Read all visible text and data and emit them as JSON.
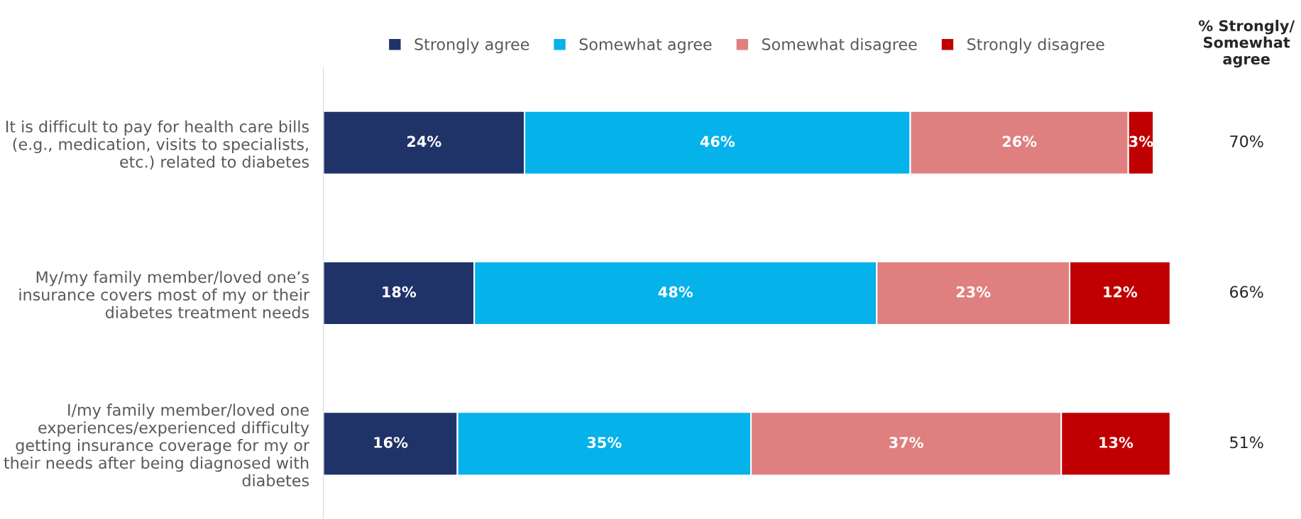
{
  "chart_data": {
    "type": "bar",
    "orientation": "horizontal",
    "stacked": true,
    "legend": "top",
    "categories": [
      "It is difficult to pay for health care bills\n(e.g., medication, visits to specialists,\netc.) related to diabetes",
      "My/my family member/loved one’s\ninsurance covers most of my or their\ndiabetes treatment needs",
      "I/my family member/loved one\nexperiences/experienced difficulty\ngetting insurance coverage for my or\ntheir needs after being diagnosed with\ndiabetes"
    ],
    "series": [
      {
        "name": "Strongly agree",
        "color": "#1f3368",
        "values": [
          24,
          18,
          16
        ],
        "value_labels": [
          "24%",
          "18%",
          "16%"
        ]
      },
      {
        "name": "Somewhat agree",
        "color": "#05b2ea",
        "values": [
          46,
          48,
          35
        ],
        "value_labels": [
          "46%",
          "48%",
          "35%"
        ]
      },
      {
        "name": "Somewhat disagree",
        "color": "#e07f7f",
        "values": [
          26,
          23,
          37
        ],
        "value_labels": [
          "26%",
          "23%",
          "37%"
        ]
      },
      {
        "name": "Strongly disagree",
        "color": "#c00000",
        "values": [
          3,
          12,
          13
        ],
        "value_labels": [
          "3%",
          "12%",
          "13%"
        ]
      }
    ],
    "annotations": [
      "% Strongly/\nSomewhat\nagree",
      "70%",
      "66%",
      "51%"
    ],
    "xlim": [
      0,
      101
    ]
  }
}
